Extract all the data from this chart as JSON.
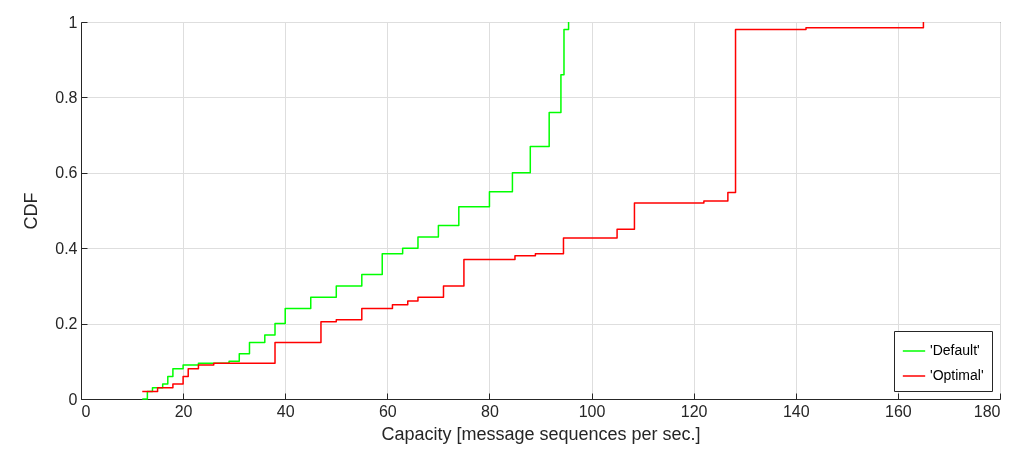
{
  "chart_data": {
    "type": "step",
    "xlabel": "Capacity [message sequences per sec.]",
    "ylabel": "CDF",
    "xlim": [
      0,
      180
    ],
    "xticks": [
      0,
      20,
      40,
      60,
      80,
      100,
      120,
      140,
      160,
      180
    ],
    "ylim": [
      0,
      1
    ],
    "yticks": [
      0,
      0.2,
      0.4,
      0.6,
      0.8,
      1
    ],
    "grid": true,
    "legend": "bottom right",
    "series": [
      {
        "name": "'Default'",
        "color": "#00ff00",
        "x": [
          12,
          13,
          14,
          16,
          17,
          18,
          20,
          23,
          29,
          31,
          33,
          36,
          38,
          40,
          45,
          50,
          55,
          59,
          63,
          66,
          70,
          74,
          80,
          84.5,
          88,
          91.7,
          94,
          94.6,
          95.5
        ],
        "values": [
          0,
          0.02,
          0.03,
          0.04,
          0.06,
          0.08,
          0.09,
          0.095,
          0.1,
          0.12,
          0.15,
          0.17,
          0.2,
          0.24,
          0.27,
          0.3,
          0.33,
          0.385,
          0.4,
          0.43,
          0.46,
          0.51,
          0.55,
          0.6,
          0.67,
          0.76,
          0.86,
          0.98,
          1
        ]
      },
      {
        "name": "'Optimal'",
        "color": "#ff0000",
        "x": [
          12,
          15,
          18,
          20,
          21,
          23,
          26,
          38,
          47,
          50,
          55,
          61,
          64,
          66,
          71,
          75,
          85,
          89,
          94.5,
          105,
          108.4,
          122,
          126.7,
          128.2,
          142,
          165
        ],
        "values": [
          0.02,
          0.03,
          0.04,
          0.06,
          0.08,
          0.09,
          0.095,
          0.15,
          0.205,
          0.21,
          0.24,
          0.25,
          0.26,
          0.27,
          0.3,
          0.37,
          0.38,
          0.385,
          0.427,
          0.45,
          0.52,
          0.525,
          0.548,
          0.98,
          0.985,
          1
        ]
      }
    ]
  }
}
